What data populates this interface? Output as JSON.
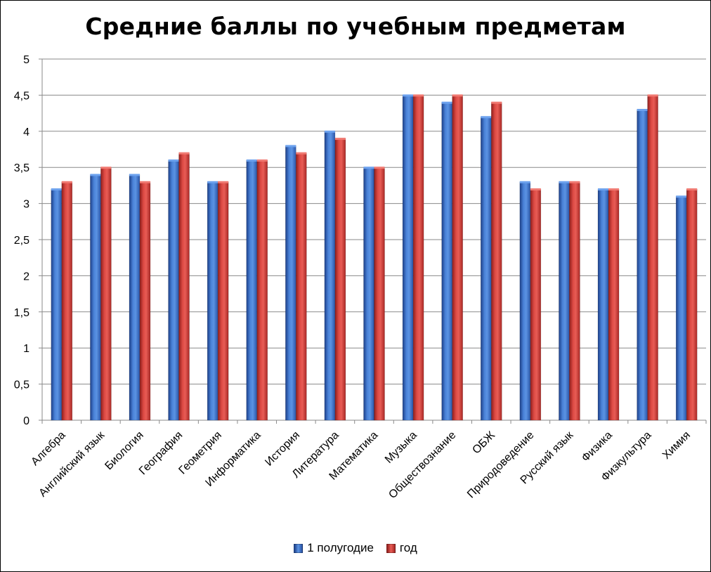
{
  "chart_data": {
    "type": "bar",
    "title": "Средние баллы по учебным предметам",
    "categories": [
      "Алгебра",
      "Английский язык",
      "Биология",
      "География",
      "Геометрия",
      "Информатика",
      "История",
      "Литература",
      "Математика",
      "Музыка",
      "Обществознание",
      "ОБЖ",
      "Природоведение",
      "Русский язык",
      "Физика",
      "Физкультура",
      "Химия"
    ],
    "series": [
      {
        "name": "1 полугодие",
        "color": "#3b6fc4",
        "values": [
          3.2,
          3.4,
          3.4,
          3.6,
          3.3,
          3.6,
          3.8,
          4.0,
          3.5,
          4.5,
          4.4,
          4.2,
          3.3,
          3.3,
          3.2,
          4.3,
          3.1
        ]
      },
      {
        "name": "год",
        "color": "#d2403a",
        "values": [
          3.3,
          3.5,
          3.3,
          3.7,
          3.3,
          3.6,
          3.7,
          3.9,
          3.5,
          4.5,
          4.5,
          4.4,
          3.2,
          3.3,
          3.2,
          4.5,
          3.2
        ]
      }
    ],
    "ylim": [
      0,
      5
    ],
    "yticks": [
      "0",
      "0,5",
      "1",
      "1,5",
      "2",
      "2,5",
      "3",
      "3,5",
      "4",
      "4,5",
      "5"
    ],
    "grid": true,
    "legend": "bottom"
  }
}
